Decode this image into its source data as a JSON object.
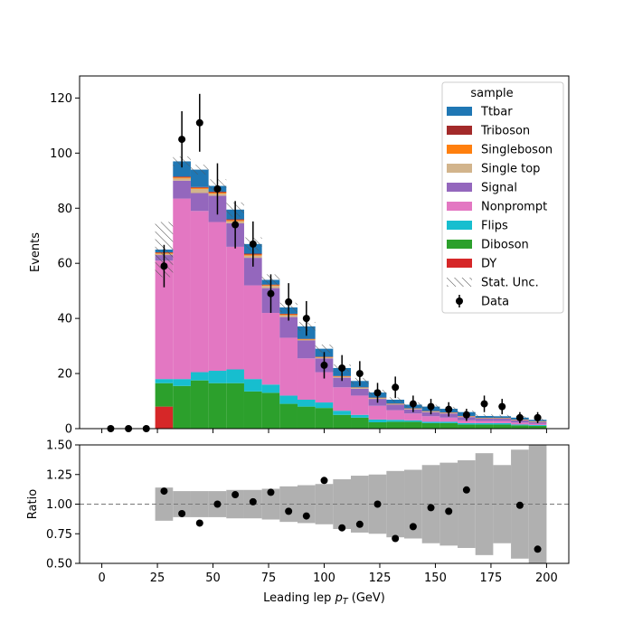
{
  "chart_data": [
    {
      "type": "bar",
      "subtype": "stacked-histogram",
      "xlabel": "Leading lep p_T (GeV)",
      "ylabel": "Events",
      "xlim": [
        -10,
        210
      ],
      "ylim": [
        0,
        128
      ],
      "x_ticks": [
        0,
        25,
        50,
        75,
        100,
        125,
        150,
        175,
        200
      ],
      "y_ticks": [
        0,
        20,
        40,
        60,
        80,
        100,
        120
      ],
      "bin_edges": [
        24,
        32,
        40,
        48,
        56,
        64,
        72,
        80,
        88,
        96,
        104,
        112,
        120,
        128,
        136,
        144,
        152,
        160,
        168,
        176,
        184,
        192,
        200
      ],
      "stack_order": [
        "DY",
        "Diboson",
        "Flips",
        "Nonprompt",
        "Signal",
        "Single top",
        "Singleboson",
        "Triboson",
        "Ttbar"
      ],
      "colors": {
        "Ttbar": "#1f77b4",
        "Triboson": "#a32a2a",
        "Singleboson": "#ff7f0e",
        "Single top": "#d2b48c",
        "Signal": "#9467bd",
        "Nonprompt": "#e377c2",
        "Flips": "#17becf",
        "Diboson": "#2ca02c",
        "DY": "#d62728",
        "Data": "#000000",
        "Stat. Unc.": "#555555"
      },
      "series": [
        {
          "name": "DY",
          "values": [
            8,
            0,
            0,
            0,
            0,
            0,
            0,
            0,
            0,
            0,
            0,
            0,
            0,
            0,
            0,
            0,
            0,
            0,
            0,
            0,
            0,
            0
          ]
        },
        {
          "name": "Diboson",
          "values": [
            8.5,
            15.5,
            17.5,
            16.5,
            16.5,
            13.5,
            13,
            9,
            8,
            7.5,
            5,
            4,
            2.3,
            2.5,
            2.5,
            2,
            2,
            1.5,
            1.5,
            1.5,
            1.2,
            1
          ]
        },
        {
          "name": "Flips",
          "values": [
            1.5,
            2.5,
            3,
            4.5,
            5,
            4.5,
            3,
            3,
            2.5,
            2,
            1.5,
            1,
            1,
            0.7,
            0.5,
            0.5,
            0.5,
            0.5,
            0.5,
            0.5,
            0.3,
            0.3
          ]
        },
        {
          "name": "Nonprompt",
          "values": [
            43,
            65.5,
            58.5,
            54,
            44.5,
            34,
            26,
            21,
            15,
            11,
            8.5,
            7,
            5,
            3.5,
            2.5,
            2,
            1.5,
            1,
            0.8,
            0.8,
            0.7,
            0.5
          ]
        },
        {
          "name": "Signal",
          "values": [
            2,
            6.5,
            6.5,
            9.5,
            8.5,
            10,
            9,
            7.5,
            6.5,
            5,
            3.5,
            2.5,
            2.5,
            2,
            1.5,
            1.5,
            1.5,
            1.2,
            0.8,
            0.8,
            0.8,
            0.6
          ]
        },
        {
          "name": "Single top",
          "values": [
            0.5,
            0.8,
            1.5,
            0.8,
            0.8,
            0.8,
            0.8,
            0.7,
            0.3,
            0.3,
            0.3,
            0.3,
            0.3,
            0.2,
            0.2,
            0.2,
            0.2,
            0.2,
            0.1,
            0.1,
            0.1,
            0.1
          ]
        },
        {
          "name": "Singleboson",
          "values": [
            0.3,
            0.4,
            0.4,
            0.4,
            0.4,
            0.4,
            0.3,
            0.3,
            0.2,
            0.2,
            0.2,
            0.1,
            0.1,
            0.1,
            0.1,
            0.1,
            0.1,
            0.1,
            0.1,
            0.1,
            0.1,
            0.1
          ]
        },
        {
          "name": "Triboson",
          "values": [
            0.2,
            0.3,
            0.3,
            0.3,
            0.3,
            0.3,
            0.2,
            0.2,
            0.1,
            0.1,
            0.1,
            0.1,
            0.1,
            0.1,
            0.1,
            0.1,
            0.1,
            0.1,
            0.1,
            0.1,
            0.1,
            0.1
          ]
        },
        {
          "name": "Ttbar",
          "values": [
            1,
            5.5,
            6.3,
            2.1,
            3.5,
            3.5,
            1.7,
            2.3,
            4.5,
            2.9,
            2.9,
            2.3,
            1.8,
            1.4,
            1.3,
            1.6,
            1.3,
            1.4,
            0.7,
            0.6,
            0.7,
            0.5
          ]
        }
      ],
      "stat_unc": [
        10,
        1.8,
        1.8,
        2.4,
        2.6,
        2.4,
        2,
        1.7,
        1.6,
        1.5,
        1.3,
        1.1,
        1,
        0.9,
        0.8,
        0.7,
        0.7,
        0.6,
        0.6,
        0.5,
        0.5,
        0.5
      ],
      "data_points": {
        "name": "Data",
        "x": [
          4,
          12,
          20,
          28,
          36,
          44,
          52,
          60,
          68,
          76,
          84,
          92,
          100,
          108,
          116,
          124,
          132,
          140,
          148,
          156,
          164,
          172,
          180,
          188,
          196
        ],
        "y": [
          0,
          0,
          0,
          59,
          105,
          111,
          87,
          74,
          67,
          49,
          46,
          40,
          23,
          22,
          20,
          13,
          15,
          9,
          8,
          7,
          5,
          9,
          8,
          4,
          4
        ],
        "yerr": [
          0,
          0,
          0,
          7.7,
          10.2,
          10.5,
          9.3,
          8.6,
          8.2,
          7,
          6.8,
          6.3,
          4.8,
          4.7,
          4.5,
          3.6,
          3.9,
          3,
          2.8,
          2.6,
          2.2,
          3,
          2.8,
          2,
          2
        ]
      },
      "legend": {
        "title": "sample",
        "placement": "upper right",
        "entries": [
          "Ttbar",
          "Triboson",
          "Singleboson",
          "Single top",
          "Signal",
          "Nonprompt",
          "Flips",
          "Diboson",
          "DY",
          "Stat. Unc.",
          "Data"
        ]
      }
    },
    {
      "type": "scatter",
      "subtype": "ratio",
      "xlabel": "Leading lep p_T (GeV)",
      "ylabel": "Ratio",
      "xlim": [
        -10,
        210
      ],
      "ylim": [
        0.5,
        1.5
      ],
      "x_ticks": [
        0,
        25,
        50,
        75,
        100,
        125,
        150,
        175,
        200
      ],
      "y_ticks": [
        0.5,
        0.75,
        1.0,
        1.25,
        1.5
      ],
      "y_tick_labels": [
        "0.50",
        "0.75",
        "1.00",
        "1.25",
        "1.50"
      ],
      "reference_line": 1.0,
      "band": {
        "bin_edges": [
          24,
          32,
          40,
          48,
          56,
          64,
          72,
          80,
          88,
          96,
          104,
          112,
          120,
          128,
          136,
          144,
          152,
          160,
          168,
          176,
          184,
          192,
          200
        ],
        "half_width": [
          0.14,
          0.11,
          0.11,
          0.11,
          0.12,
          0.12,
          0.13,
          0.15,
          0.16,
          0.17,
          0.21,
          0.24,
          0.25,
          0.28,
          0.29,
          0.33,
          0.35,
          0.37,
          0.43,
          0.33,
          0.46,
          0.5
        ]
      },
      "points": {
        "x": [
          28,
          36,
          44,
          52,
          60,
          68,
          76,
          84,
          92,
          100,
          108,
          116,
          124,
          132,
          140,
          148,
          156,
          164,
          188,
          196
        ],
        "y": [
          1.11,
          0.92,
          0.84,
          1.0,
          1.08,
          1.02,
          1.1,
          0.94,
          0.9,
          1.2,
          0.8,
          0.83,
          1.0,
          0.71,
          0.81,
          0.97,
          0.94,
          1.12,
          0.99,
          0.62
        ]
      }
    }
  ]
}
